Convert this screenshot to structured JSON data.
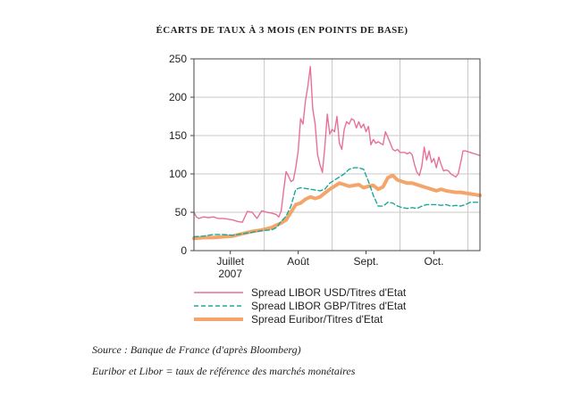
{
  "chart_data": {
    "type": "line",
    "title": "ÉCARTS DE TAUX À 3 MOIS (EN POINTS DE BASE)",
    "xlabel": "",
    "ylabel": "",
    "ylim": [
      0,
      250
    ],
    "yticks": [
      0,
      50,
      100,
      150,
      200,
      250
    ],
    "grid": true,
    "legend_position": "bottom",
    "x_unit": "trading day index (approx.)",
    "x_range": [
      0,
      118
    ],
    "x_ticks": [
      {
        "label": "Juillet",
        "sublabel": "2007",
        "x": 15
      },
      {
        "label": "Août",
        "sublabel": "",
        "x": 43
      },
      {
        "label": "Sept.",
        "sublabel": "",
        "x": 71
      },
      {
        "label": "Oct.",
        "sublabel": "",
        "x": 99
      }
    ],
    "series": [
      {
        "name": "Spread LIBOR USD/Titres d'Etat",
        "color": "#e8709a",
        "style": "solid",
        "x": [
          0,
          1,
          2,
          4,
          6,
          8,
          10,
          12,
          14,
          16,
          18,
          20,
          22,
          24,
          26,
          28,
          30,
          32,
          34,
          35,
          36,
          37,
          38,
          39,
          40,
          41,
          42,
          43,
          44,
          45,
          46,
          47,
          48,
          49,
          50,
          51,
          52,
          53,
          54,
          55,
          56,
          57,
          58,
          59,
          60,
          61,
          62,
          63,
          64,
          65,
          66,
          67,
          68,
          69,
          70,
          71,
          72,
          73,
          74,
          75,
          76,
          77,
          78,
          79,
          80,
          81,
          82,
          83,
          84,
          85,
          86,
          87,
          88,
          89,
          90,
          91,
          92,
          93,
          94,
          95,
          96,
          97,
          98,
          99,
          100,
          101,
          102,
          103,
          104,
          105,
          106,
          107,
          108,
          109,
          110,
          111,
          112,
          113,
          114,
          115,
          116,
          117,
          118
        ],
        "y": [
          50,
          44,
          42,
          44,
          43,
          44,
          42,
          42,
          41,
          40,
          38,
          37,
          51,
          50,
          42,
          52,
          50,
          49,
          47,
          44,
          52,
          78,
          103,
          97,
          90,
          92,
          108,
          130,
          172,
          165,
          195,
          215,
          240,
          185,
          165,
          125,
          112,
          102,
          135,
          178,
          152,
          158,
          155,
          175,
          140,
          132,
          158,
          168,
          165,
          172,
          170,
          160,
          168,
          160,
          165,
          155,
          162,
          138,
          145,
          140,
          142,
          140,
          138,
          155,
          148,
          140,
          132,
          130,
          132,
          128,
          128,
          128,
          126,
          128,
          125,
          112,
          102,
          98,
          110,
          135,
          118,
          130,
          115,
          120,
          108,
          122,
          112,
          104,
          105,
          104,
          100,
          98,
          96,
          100,
          114,
          130,
          130,
          129,
          128,
          127,
          126,
          125,
          124
        ],
        "note": "series values estimated from gridlines"
      },
      {
        "name": "Spread LIBOR GBP/Titres d'Etat",
        "color": "#1aa89a",
        "style": "dashed",
        "x": [
          0,
          4,
          8,
          12,
          16,
          20,
          24,
          28,
          32,
          34,
          36,
          38,
          40,
          42,
          44,
          46,
          48,
          50,
          52,
          54,
          56,
          58,
          60,
          62,
          64,
          66,
          68,
          70,
          72,
          74,
          76,
          78,
          80,
          82,
          84,
          86,
          88,
          90,
          92,
          94,
          96,
          98,
          100,
          102,
          104,
          106,
          108,
          110,
          112,
          114,
          116,
          118
        ],
        "y": [
          18,
          19,
          21,
          21,
          20,
          22,
          24,
          26,
          27,
          30,
          38,
          45,
          58,
          80,
          82,
          81,
          80,
          79,
          78,
          80,
          88,
          92,
          96,
          100,
          106,
          108,
          108,
          106,
          90,
          72,
          58,
          58,
          63,
          62,
          58,
          56,
          55,
          56,
          55,
          58,
          60,
          60,
          60,
          59,
          60,
          58,
          59,
          58,
          60,
          63,
          63,
          63
        ]
      },
      {
        "name": "Spread Euribor/Titres d'Etat",
        "color": "#f4a56a",
        "style": "thick",
        "x": [
          0,
          4,
          8,
          12,
          16,
          20,
          24,
          28,
          32,
          34,
          36,
          38,
          40,
          42,
          44,
          46,
          48,
          50,
          52,
          54,
          56,
          58,
          60,
          62,
          64,
          66,
          68,
          70,
          72,
          74,
          76,
          78,
          80,
          82,
          84,
          86,
          88,
          90,
          92,
          94,
          96,
          98,
          100,
          102,
          104,
          106,
          108,
          110,
          112,
          114,
          116,
          118
        ],
        "y": [
          16,
          17,
          17,
          18,
          19,
          22,
          25,
          27,
          30,
          33,
          36,
          40,
          50,
          60,
          62,
          67,
          70,
          68,
          70,
          75,
          80,
          84,
          88,
          86,
          84,
          85,
          86,
          82,
          84,
          85,
          80,
          83,
          95,
          98,
          92,
          90,
          88,
          88,
          86,
          84,
          82,
          80,
          78,
          80,
          78,
          77,
          76,
          76,
          75,
          74,
          73,
          72
        ]
      }
    ]
  },
  "notes": {
    "source": "Source : Banque de France (d'après Bloomberg)",
    "definition": "Euribor et Libor = taux de référence des marchés monétaires"
  }
}
